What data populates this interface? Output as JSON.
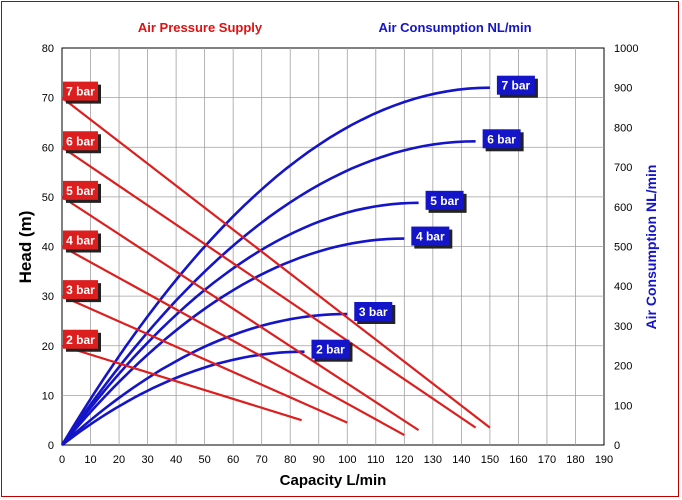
{
  "chart_data": {
    "type": "line",
    "header_left": "Air Pressure Supply",
    "header_right": "Air Consumption NL/min",
    "xlabel": "Capacity L/min",
    "ylabel_left": "Head (m)",
    "ylabel_right": "Air Consumption NL/min",
    "xlim": [
      0,
      190
    ],
    "ylim_left": [
      0,
      80
    ],
    "ylim_right": [
      0,
      1000
    ],
    "x_ticks": [
      0,
      10,
      20,
      30,
      40,
      50,
      60,
      70,
      80,
      90,
      100,
      110,
      120,
      130,
      140,
      150,
      160,
      170,
      180,
      190
    ],
    "y_left_ticks": [
      0,
      10,
      20,
      30,
      40,
      50,
      60,
      70,
      80
    ],
    "y_right_ticks": [
      0,
      100,
      200,
      300,
      400,
      500,
      600,
      700,
      800,
      900,
      1000
    ],
    "grid": true,
    "colors": {
      "head": "#dd1e1e",
      "air": "#1414c8",
      "header_left": "#e01010",
      "header_right": "#1414c8"
    },
    "head_series": [
      {
        "name": "2 bar",
        "label": "2 bar",
        "start_head": 20,
        "end_capacity": 84,
        "end_head": 5
      },
      {
        "name": "3 bar",
        "label": "3 bar",
        "start_head": 30,
        "end_capacity": 100,
        "end_head": 4.5
      },
      {
        "name": "4 bar",
        "label": "4 bar",
        "start_head": 40,
        "end_capacity": 120,
        "end_head": 2
      },
      {
        "name": "5 bar",
        "label": "5 bar",
        "start_head": 50,
        "end_capacity": 125,
        "end_head": 3
      },
      {
        "name": "6 bar",
        "label": "6 bar",
        "start_head": 60,
        "end_capacity": 145,
        "end_head": 3.5
      },
      {
        "name": "7 bar",
        "label": "7 bar",
        "start_head": 70,
        "end_capacity": 150,
        "end_head": 3.5
      }
    ],
    "air_series": [
      {
        "name": "2 bar",
        "label": "2 bar",
        "peak_capacity": 85,
        "peak_air": 235
      },
      {
        "name": "3 bar",
        "label": "3 bar",
        "peak_capacity": 100,
        "peak_air": 330
      },
      {
        "name": "4 bar",
        "label": "4 bar",
        "peak_capacity": 120,
        "peak_air": 520
      },
      {
        "name": "5 bar",
        "label": "5 bar",
        "peak_capacity": 125,
        "peak_air": 610
      },
      {
        "name": "6 bar",
        "label": "6 bar",
        "peak_capacity": 145,
        "peak_air": 765
      },
      {
        "name": "7 bar",
        "label": "7 bar",
        "peak_capacity": 150,
        "peak_air": 900
      }
    ]
  }
}
